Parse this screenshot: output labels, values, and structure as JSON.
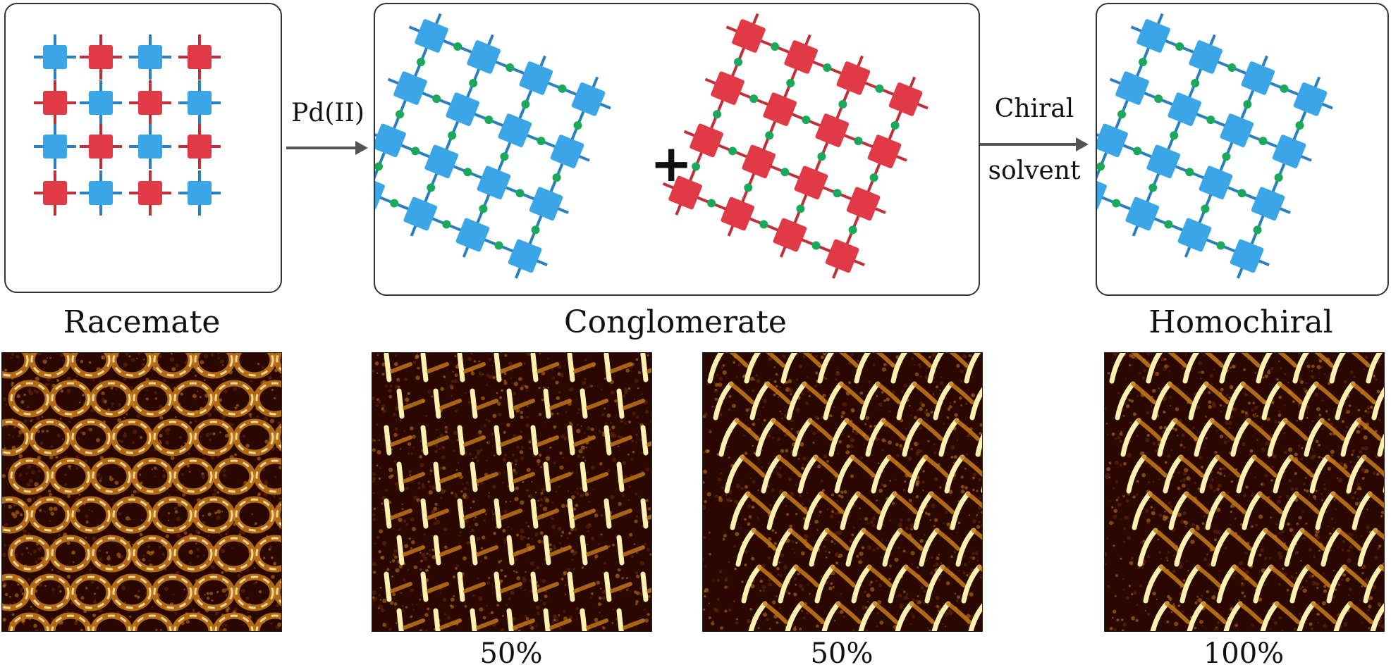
{
  "labels": {
    "racemate": "Racemate",
    "conglomerate": "Conglomerate",
    "homochiral": "Homochiral"
  },
  "arrows": {
    "first": "Pd(II)",
    "second_line1": "Chiral",
    "second_line2": "solvent"
  },
  "plus_sign": "+",
  "percentages": {
    "conglomerate_left": "50%",
    "conglomerate_right": "50%",
    "homochiral": "100%"
  },
  "colors": {
    "blue_unit": "#3aa6e8",
    "red_unit": "#e03a46",
    "pd_node": "#1aa85a",
    "stm_bright": "#fff2b0",
    "stm_mid": "#c87a1a",
    "stm_dark": "#2a0800"
  }
}
